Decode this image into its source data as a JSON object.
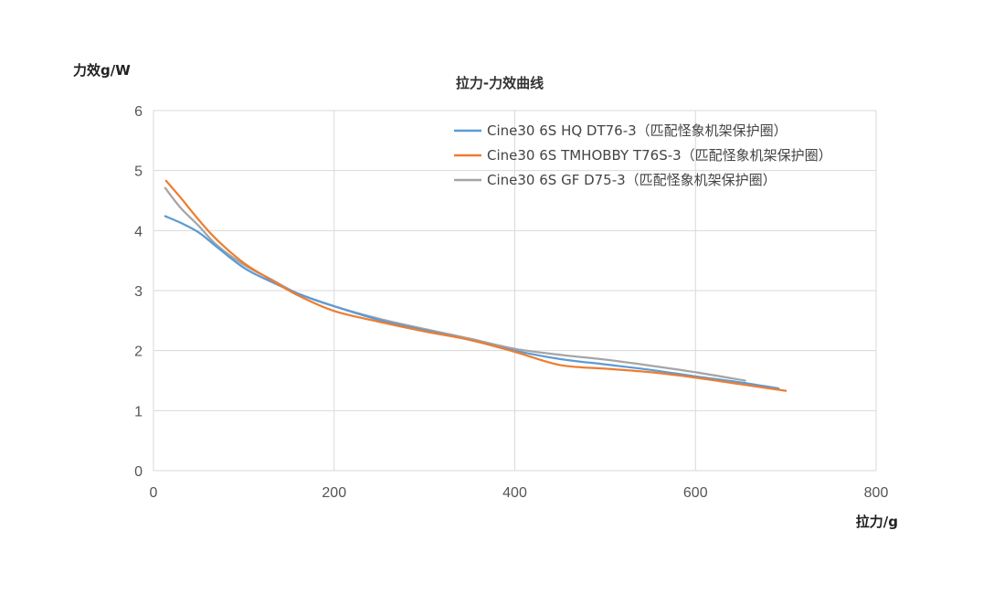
{
  "chart_data": {
    "type": "line",
    "title": "拉力-力效曲线",
    "xlabel": "拉力/g",
    "ylabel": "力效g/W",
    "xlim": [
      0,
      800
    ],
    "ylim": [
      0,
      6
    ],
    "xticks": [
      0,
      200,
      400,
      600,
      800
    ],
    "yticks": [
      0,
      1,
      2,
      3,
      4,
      5,
      6
    ],
    "grid": true,
    "legend_position": "top-right",
    "series": [
      {
        "name": "Cine30 6S HQ DT76-3（匹配怪象机架保护圈）",
        "color": "#5b9bd5",
        "x": [
          13,
          30,
          50,
          70,
          100,
          130,
          160,
          200,
          250,
          300,
          350,
          400,
          450,
          500,
          550,
          600,
          650,
          692
        ],
        "y": [
          4.24,
          4.13,
          3.97,
          3.73,
          3.38,
          3.15,
          2.95,
          2.74,
          2.51,
          2.34,
          2.18,
          2.0,
          1.86,
          1.77,
          1.68,
          1.57,
          1.47,
          1.37
        ]
      },
      {
        "name": "Cine30 6S TMHOBBY T76S-3（匹配怪象机架保护圈）",
        "color": "#ed7d31",
        "x": [
          14,
          30,
          50,
          70,
          100,
          130,
          160,
          200,
          250,
          300,
          350,
          400,
          450,
          500,
          550,
          600,
          650,
          700
        ],
        "y": [
          4.83,
          4.55,
          4.18,
          3.85,
          3.46,
          3.18,
          2.92,
          2.66,
          2.48,
          2.32,
          2.18,
          1.98,
          1.76,
          1.7,
          1.64,
          1.55,
          1.44,
          1.33
        ]
      },
      {
        "name": "Cine30 6S GF  D75-3（匹配怪象机架保护圈）",
        "color": "#a5a5a5",
        "x": [
          13,
          30,
          50,
          70,
          100,
          130,
          160,
          200,
          250,
          300,
          350,
          400,
          450,
          500,
          550,
          600,
          655
        ],
        "y": [
          4.71,
          4.38,
          4.08,
          3.76,
          3.43,
          3.19,
          2.95,
          2.74,
          2.53,
          2.36,
          2.2,
          2.03,
          1.93,
          1.85,
          1.75,
          1.64,
          1.5
        ]
      }
    ]
  }
}
